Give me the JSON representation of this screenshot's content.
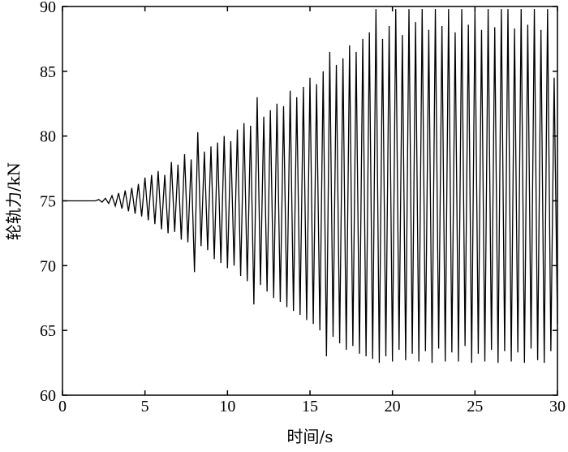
{
  "chart_data": {
    "type": "line",
    "xlabel": "时间/s",
    "ylabel": "轮轨力/kN",
    "xlim": [
      0,
      30
    ],
    "xticks": [
      0,
      5,
      10,
      15,
      20,
      25,
      30
    ],
    "ylim": [
      60,
      90
    ],
    "yticks": [
      60,
      65,
      70,
      75,
      80,
      85,
      90
    ],
    "color": "#000000",
    "x": [
      0,
      0.2,
      0.4,
      0.6,
      0.8,
      1,
      1.2,
      1.4,
      1.6,
      1.8,
      2,
      2.2,
      2.4,
      2.6,
      2.8,
      3,
      3.2,
      3.4,
      3.6,
      3.8,
      4,
      4.2,
      4.4,
      4.6,
      4.8,
      5,
      5.2,
      5.4,
      5.6,
      5.8,
      6,
      6.2,
      6.4,
      6.6,
      6.8,
      7,
      7.2,
      7.4,
      7.6,
      7.8,
      8,
      8.2,
      8.4,
      8.6,
      8.8,
      9,
      9.2,
      9.4,
      9.6,
      9.8,
      10,
      10.2,
      10.4,
      10.6,
      10.8,
      11,
      11.2,
      11.4,
      11.6,
      11.8,
      12,
      12.2,
      12.4,
      12.6,
      12.8,
      13,
      13.2,
      13.4,
      13.6,
      13.8,
      14,
      14.2,
      14.4,
      14.6,
      14.8,
      15,
      15.2,
      15.4,
      15.6,
      15.8,
      16,
      16.2,
      16.4,
      16.6,
      16.8,
      17,
      17.2,
      17.4,
      17.6,
      17.8,
      18,
      18.2,
      18.4,
      18.6,
      18.8,
      19,
      19.2,
      19.4,
      19.6,
      19.8,
      20,
      20.2,
      20.4,
      20.6,
      20.8,
      21,
      21.2,
      21.4,
      21.6,
      21.8,
      22,
      22.2,
      22.4,
      22.6,
      22.8,
      23,
      23.2,
      23.4,
      23.6,
      23.8,
      24,
      24.2,
      24.4,
      24.6,
      24.8,
      25,
      25.2,
      25.4,
      25.6,
      25.8,
      26,
      26.2,
      26.4,
      26.6,
      26.8,
      27,
      27.2,
      27.4,
      27.6,
      27.8,
      28,
      28.2,
      28.4,
      28.6,
      28.8,
      29,
      29.2,
      29.4,
      29.6,
      29.8,
      30
    ],
    "values": [
      75,
      75,
      75,
      75,
      75,
      75,
      75,
      75,
      75,
      75,
      75,
      75.1,
      74.9,
      75.2,
      74.8,
      75.4,
      74.6,
      75.6,
      74.4,
      75.8,
      74.2,
      76,
      74,
      76.3,
      73.8,
      76.8,
      73.5,
      77,
      73.2,
      77.3,
      72.8,
      77,
      72.5,
      78,
      72.6,
      77.8,
      72,
      78.6,
      71.8,
      78.2,
      69.5,
      80.3,
      71.5,
      78.8,
      71.2,
      79.2,
      70.5,
      79.5,
      70.2,
      80,
      69.8,
      79.6,
      70,
      80.5,
      69.2,
      81,
      68.8,
      80.8,
      67,
      83,
      68.5,
      81.5,
      68,
      82,
      67.5,
      82.5,
      67.2,
      82.3,
      66.8,
      83.5,
      66.5,
      83,
      66.2,
      83.8,
      65.8,
      84.5,
      65.5,
      84,
      65,
      85,
      63,
      86.5,
      64.5,
      85.5,
      64,
      86,
      63.5,
      87,
      63.8,
      86.5,
      63.2,
      87.5,
      63,
      88,
      62.8,
      89.8,
      62.5,
      87.5,
      63,
      88.5,
      62.6,
      89.8,
      63.5,
      87.8,
      62.7,
      89.8,
      63.2,
      88.8,
      62.6,
      89.8,
      63.4,
      88.2,
      62.5,
      89.8,
      63.6,
      88.5,
      62.6,
      89.8,
      63.3,
      88,
      62.6,
      89.8,
      63.8,
      88.6,
      62.5,
      89.8,
      63.2,
      88.2,
      62.6,
      89.8,
      63.5,
      88.4,
      62.5,
      89.8,
      63.4,
      89.8,
      62.6,
      88.3,
      63.3,
      89.8,
      62.5,
      88.6,
      63.6,
      89.8,
      62.7,
      88.2,
      62.5,
      89.8,
      63.4,
      84.5,
      65.5
    ]
  }
}
